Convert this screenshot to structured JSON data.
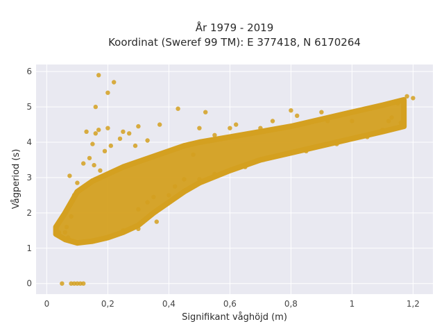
{
  "chart_data": {
    "type": "scatter",
    "title": "År 1979 - 2019",
    "subtitle": "Koordinat (Sweref 99 TM): E 377418, N 6170264",
    "xlabel": "Signifikant våghöjd (m)",
    "ylabel": "Vågperiod (s)",
    "xlim": [
      -0.035,
      1.265
    ],
    "ylim": [
      -0.3,
      6.2
    ],
    "x_ticks": [
      0,
      0.2,
      0.4,
      0.6,
      0.8,
      1,
      1.2
    ],
    "x_tick_labels": [
      "0",
      "0,2",
      "0,4",
      "0,6",
      "0,8",
      "1",
      "1,2"
    ],
    "y_ticks": [
      0,
      1,
      2,
      3,
      4,
      5,
      6
    ],
    "y_tick_labels": [
      "0",
      "1",
      "2",
      "3",
      "4",
      "5",
      "6"
    ],
    "grid": true,
    "marker_color": "#d4a020",
    "background_color": "#e9e9f1",
    "series": [
      {
        "marker_color": "#d4a020",
        "band": {
          "x": [
            0.03,
            0.06,
            0.1,
            0.15,
            0.2,
            0.25,
            0.3,
            0.35,
            0.4,
            0.45,
            0.5,
            0.6,
            0.7,
            0.8,
            0.9,
            1.0,
            1.1,
            1.17
          ],
          "y_low": [
            1.4,
            1.25,
            1.15,
            1.2,
            1.3,
            1.45,
            1.65,
            2.0,
            2.3,
            2.6,
            2.85,
            3.2,
            3.5,
            3.7,
            3.9,
            4.1,
            4.3,
            4.45
          ],
          "y_high": [
            1.6,
            2.0,
            2.6,
            2.9,
            3.1,
            3.3,
            3.45,
            3.6,
            3.75,
            3.9,
            4.0,
            4.15,
            4.3,
            4.45,
            4.65,
            4.85,
            5.05,
            5.2
          ]
        },
        "points": [
          [
            0.05,
            0.0
          ],
          [
            0.08,
            0.0
          ],
          [
            0.09,
            0.0
          ],
          [
            0.1,
            0.0
          ],
          [
            0.11,
            0.0
          ],
          [
            0.12,
            0.0
          ],
          [
            0.075,
            3.05
          ],
          [
            0.09,
            2.5
          ],
          [
            0.08,
            1.9
          ],
          [
            0.1,
            2.85
          ],
          [
            0.12,
            3.4
          ],
          [
            0.13,
            4.3
          ],
          [
            0.14,
            3.55
          ],
          [
            0.15,
            3.95
          ],
          [
            0.155,
            3.35
          ],
          [
            0.16,
            4.25
          ],
          [
            0.17,
            4.35
          ],
          [
            0.175,
            3.2
          ],
          [
            0.16,
            5.0
          ],
          [
            0.17,
            5.9
          ],
          [
            0.2,
            5.4
          ],
          [
            0.22,
            5.7
          ],
          [
            0.2,
            4.4
          ],
          [
            0.24,
            4.1
          ],
          [
            0.21,
            3.9
          ],
          [
            0.19,
            3.75
          ],
          [
            0.25,
            4.3
          ],
          [
            0.27,
            4.25
          ],
          [
            0.3,
            4.45
          ],
          [
            0.33,
            4.05
          ],
          [
            0.37,
            4.5
          ],
          [
            0.43,
            4.95
          ],
          [
            0.29,
            3.9
          ],
          [
            0.3,
            2.1
          ],
          [
            0.33,
            2.3
          ],
          [
            0.35,
            2.45
          ],
          [
            0.4,
            2.5
          ],
          [
            0.42,
            2.75
          ],
          [
            0.45,
            2.95
          ],
          [
            0.36,
            1.75
          ],
          [
            0.3,
            1.55
          ],
          [
            0.25,
            1.5
          ],
          [
            0.5,
            4.4
          ],
          [
            0.52,
            4.85
          ],
          [
            0.55,
            4.2
          ],
          [
            0.6,
            4.4
          ],
          [
            0.62,
            4.5
          ],
          [
            0.7,
            4.4
          ],
          [
            0.74,
            4.6
          ],
          [
            0.8,
            4.9
          ],
          [
            0.82,
            4.75
          ],
          [
            0.9,
            4.85
          ],
          [
            0.92,
            4.6
          ],
          [
            0.96,
            4.75
          ],
          [
            0.65,
            3.3
          ],
          [
            0.7,
            3.5
          ],
          [
            0.75,
            3.6
          ],
          [
            0.85,
            3.75
          ],
          [
            0.95,
            3.95
          ],
          [
            1.05,
            4.15
          ],
          [
            1.1,
            4.35
          ],
          [
            1.12,
            4.6
          ],
          [
            1.15,
            5.1
          ],
          [
            1.18,
            5.3
          ],
          [
            1.2,
            5.25
          ],
          [
            1.13,
            4.7
          ],
          [
            1.16,
            4.55
          ],
          [
            1.05,
            4.95
          ],
          [
            1.0,
            4.6
          ],
          [
            0.55,
            3.1
          ],
          [
            0.5,
            2.95
          ],
          [
            0.48,
            3.65
          ],
          [
            0.06,
            1.45
          ],
          [
            0.04,
            1.45
          ],
          [
            0.07,
            1.3
          ],
          [
            0.065,
            1.6
          ]
        ]
      }
    ]
  }
}
